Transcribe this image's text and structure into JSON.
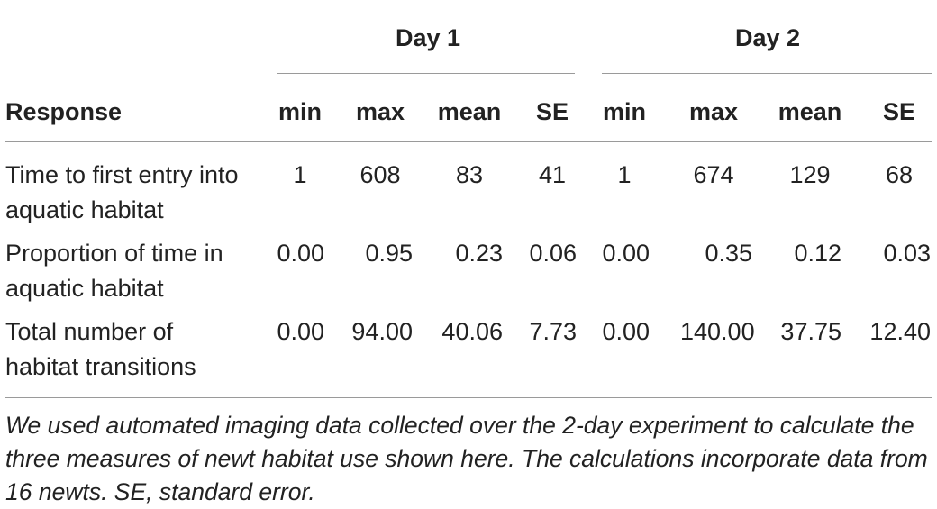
{
  "table": {
    "groups": [
      "Day 1",
      "Day 2"
    ],
    "row_header": "Response",
    "subheaders": [
      "min",
      "max",
      "mean",
      "SE",
      "min",
      "max",
      "mean",
      "SE"
    ],
    "rows": [
      {
        "label": [
          "Time to first entry into",
          "aquatic habitat"
        ],
        "values": [
          "1",
          "608",
          "83",
          "41",
          "1",
          "674",
          "129",
          "68"
        ]
      },
      {
        "label": [
          "Proportion of time in",
          "aquatic habitat"
        ],
        "values": [
          "0.00",
          "0.95",
          "0.23",
          "0.06",
          "0.00",
          "0.35",
          "0.12",
          "0.03"
        ]
      },
      {
        "label": [
          "Total number of",
          "habitat transitions"
        ],
        "values": [
          "0.00",
          "94.00",
          "40.06",
          "7.73",
          "0.00",
          "140.00",
          "37.75",
          "12.40"
        ]
      }
    ]
  },
  "footnote": "We used automated imaging data collected over the 2-day experiment to calculate the three measures of newt habitat use shown here. The calculations incorporate data from 16 newts. SE, standard error."
}
